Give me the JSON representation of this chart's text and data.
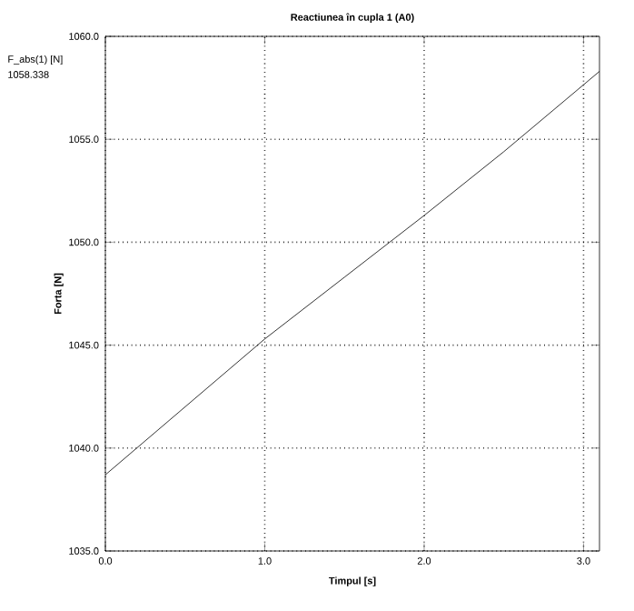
{
  "chart_data": {
    "type": "line",
    "title": "Reactiunea în cupla 1 (A0)",
    "xlabel": "Timpul [s]",
    "ylabel": "Forta [N]",
    "annotations": [
      "F_abs(1) [N]",
      "1058.338"
    ],
    "x": [
      0,
      0.5,
      1.0,
      1.5,
      2.0,
      2.5,
      3.1
    ],
    "series": [
      {
        "color": "#000000",
        "values": [
          1038.7,
          1042.0,
          1045.3,
          1048.3,
          1051.3,
          1054.4,
          1058.3
        ]
      }
    ],
    "xlim": [
      0,
      3.1
    ],
    "ylim": [
      1035,
      1060
    ],
    "xticks": [
      {
        "value": 0,
        "label": "0.0"
      },
      {
        "value": 1,
        "label": "1.0"
      },
      {
        "value": 2,
        "label": "2.0"
      },
      {
        "value": 3,
        "label": "3.0"
      }
    ],
    "yticks": [
      {
        "value": 1035,
        "label": "1035.0"
      },
      {
        "value": 1040,
        "label": "1040.0"
      },
      {
        "value": 1045,
        "label": "1045.0"
      },
      {
        "value": 1050,
        "label": "1050.0"
      },
      {
        "value": 1055,
        "label": "1055.0"
      },
      {
        "value": 1060,
        "label": "1060.0"
      }
    ],
    "grid": true,
    "marker": "none",
    "line_style": "solid"
  }
}
